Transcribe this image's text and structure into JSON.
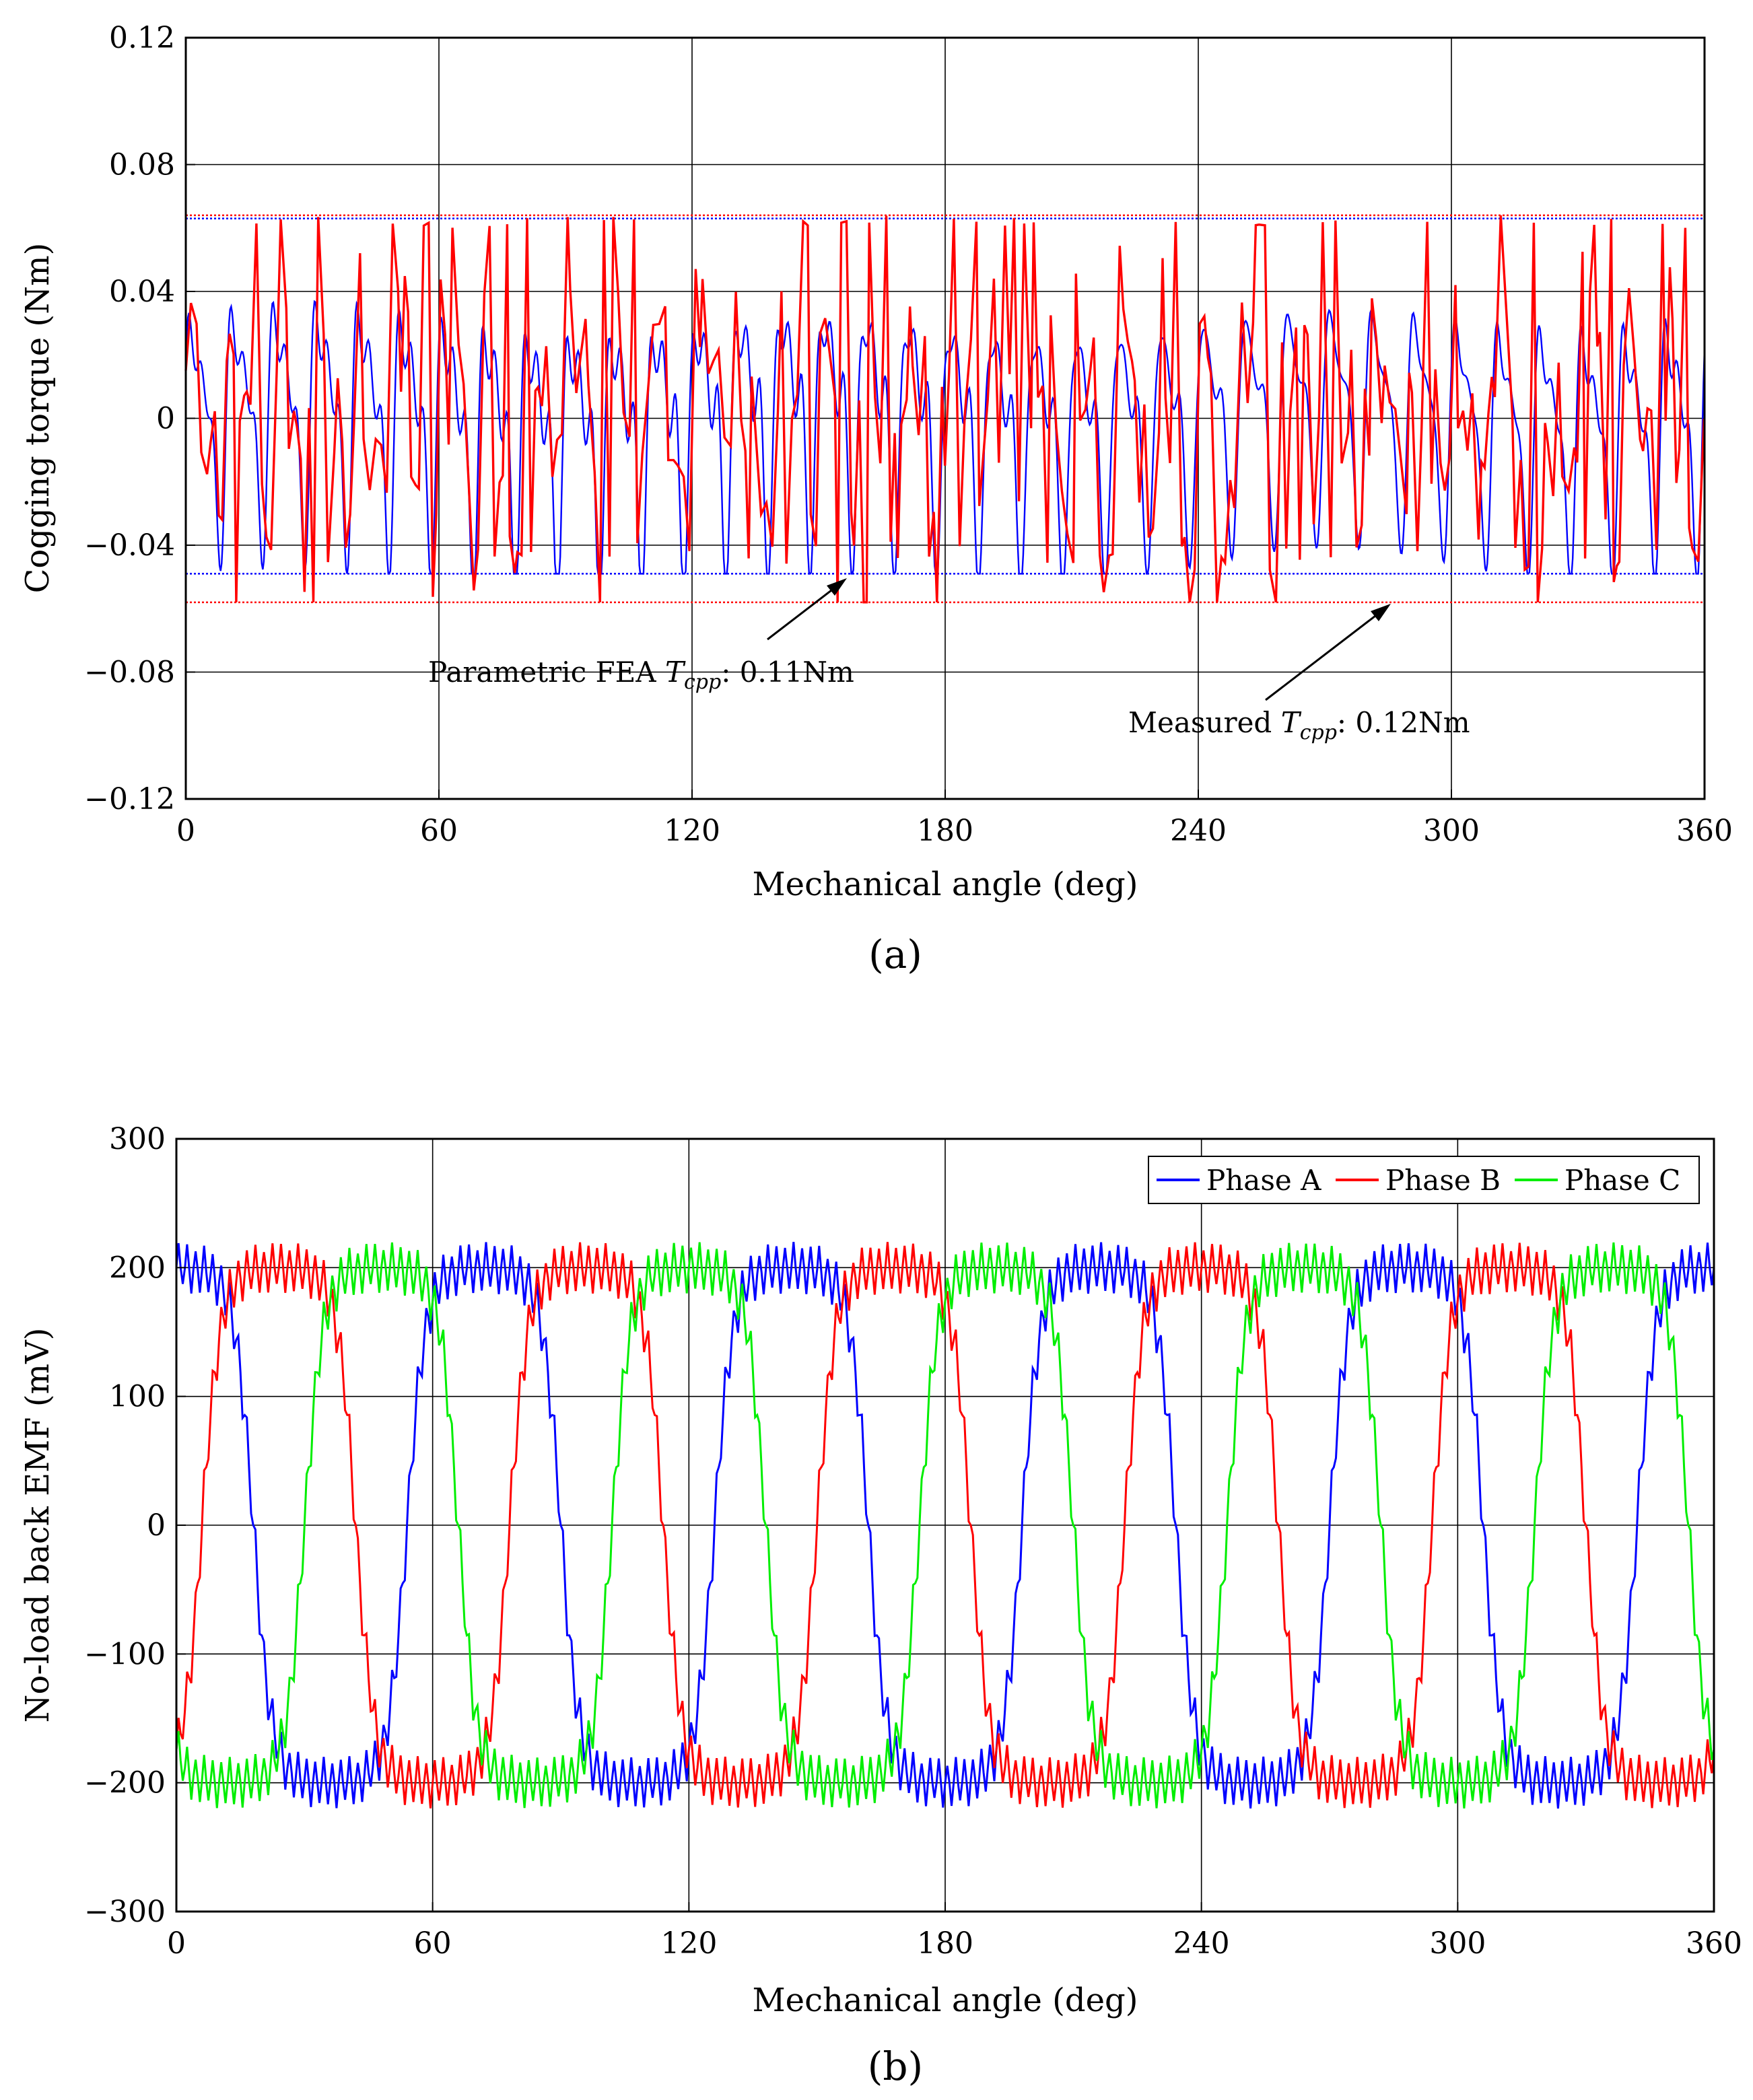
{
  "chart_data": [
    {
      "type": "line",
      "panel_label": "(a)",
      "xlabel": "Mechanical angle (deg)",
      "ylabel": "Cogging torque (Nm)",
      "xlim": [
        0,
        360
      ],
      "ylim": [
        -0.12,
        0.12
      ],
      "xticks": [
        0,
        60,
        120,
        180,
        240,
        300,
        360
      ],
      "yticks": [
        -0.12,
        -0.08,
        -0.04,
        0,
        0.04,
        0.08,
        0.12
      ],
      "ytick_labels": [
        "−0.12",
        "−0.08",
        "−0.04",
        "0",
        "0.04",
        "0.08",
        "0.12"
      ],
      "grid": true,
      "series": [
        {
          "name": "Parametric FEA",
          "color": "#0000ff",
          "max": 0.063,
          "min": -0.049,
          "dominant_period_deg": 10
        },
        {
          "name": "Measured",
          "color": "#ff0000",
          "max": 0.064,
          "min": -0.058,
          "dominant_period_deg": 10
        }
      ],
      "reference_lines": [
        {
          "series": "Parametric FEA",
          "y": 0.063,
          "color": "#0000ff"
        },
        {
          "series": "Parametric FEA",
          "y": -0.049,
          "color": "#0000ff"
        },
        {
          "series": "Measured",
          "y": 0.064,
          "color": "#ff0000"
        },
        {
          "series": "Measured",
          "y": -0.058,
          "color": "#ff0000"
        }
      ],
      "annotations": [
        {
          "prefix": "Parametric FEA ",
          "symbol": "T",
          "subscript": "cpp",
          "suffix": ": 0.11Nm",
          "arrow_to": [
            158,
            -0.052
          ]
        },
        {
          "prefix": "Measured ",
          "symbol": "T",
          "subscript": "cpp",
          "suffix": ": 0.12Nm",
          "arrow_to": [
            285,
            -0.059
          ]
        }
      ]
    },
    {
      "type": "line",
      "panel_label": "(b)",
      "xlabel": "Mechanical angle (deg)",
      "ylabel": "No-load back EMF (mV)",
      "xlim": [
        0,
        360
      ],
      "ylim": [
        -300,
        300
      ],
      "xticks": [
        0,
        60,
        120,
        180,
        240,
        300,
        360
      ],
      "yticks": [
        -300,
        -200,
        -100,
        0,
        100,
        200,
        300
      ],
      "ytick_labels": [
        "−300",
        "−200",
        "−100",
        "0",
        "100",
        "200",
        "300"
      ],
      "grid": true,
      "legend_position": "top-right",
      "period_deg": 72,
      "amplitude_mV": 200,
      "ripple_mV": 20,
      "series": [
        {
          "name": "Phase A",
          "color": "#0000ff",
          "phase_offset_deg": 0
        },
        {
          "name": "Phase B",
          "color": "#ff0000",
          "phase_offset_deg": 24
        },
        {
          "name": "Phase C",
          "color": "#00ee00",
          "phase_offset_deg": 48
        }
      ]
    }
  ]
}
